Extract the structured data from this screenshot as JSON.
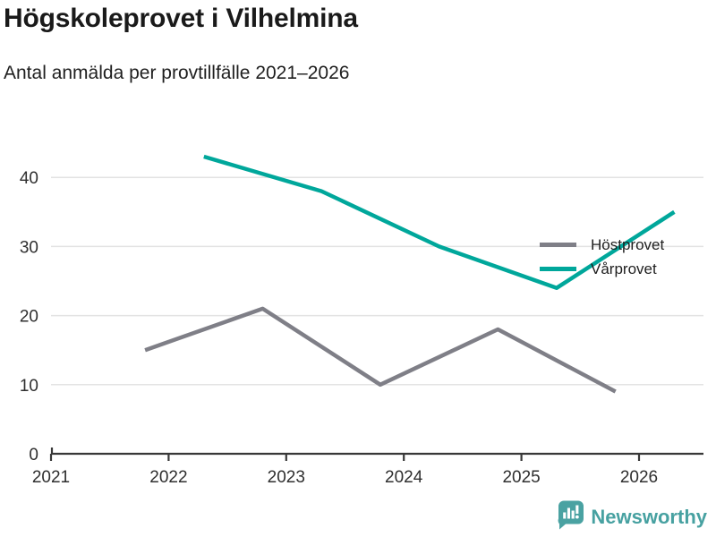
{
  "header": {
    "title": "Högskoleprovet i Vilhelmina",
    "subtitle": "Antal anmälda per provtillfälle 2021–2026"
  },
  "chart_data": {
    "type": "line",
    "title": "Högskoleprovet i Vilhelmina",
    "subtitle": "Antal anmälda per provtillfälle 2021–2026",
    "xlabel": "",
    "ylabel": "",
    "xlim": [
      2021,
      2026.55
    ],
    "ylim": [
      0,
      45
    ],
    "x_ticks": [
      2021,
      2022,
      2023,
      2024,
      2025,
      2026
    ],
    "y_ticks": [
      0,
      10,
      20,
      30,
      40
    ],
    "grid": "horizontal",
    "legend_position": "top-right",
    "series": [
      {
        "name": "Höstprovet",
        "color": "#7f7f87",
        "points": [
          {
            "x": 2021.8,
            "y": 15
          },
          {
            "x": 2022.8,
            "y": 21
          },
          {
            "x": 2023.8,
            "y": 10
          },
          {
            "x": 2024.8,
            "y": 18
          },
          {
            "x": 2025.8,
            "y": 9
          }
        ]
      },
      {
        "name": "Vårprovet",
        "color": "#00a79b",
        "points": [
          {
            "x": 2022.3,
            "y": 43
          },
          {
            "x": 2023.3,
            "y": 38
          },
          {
            "x": 2024.3,
            "y": 30
          },
          {
            "x": 2025.3,
            "y": 24
          },
          {
            "x": 2026.3,
            "y": 35
          }
        ]
      }
    ]
  },
  "colors": {
    "grid": "#e3e3e3",
    "axis": "#383838",
    "tick_label": "#2f2f2f",
    "title_text": "#1a1a1a",
    "brand_teal": "#47a1a1"
  },
  "footer": {
    "brand": "Newsworthy",
    "logo_icon": "bar-chart-speech-bubble-icon"
  }
}
